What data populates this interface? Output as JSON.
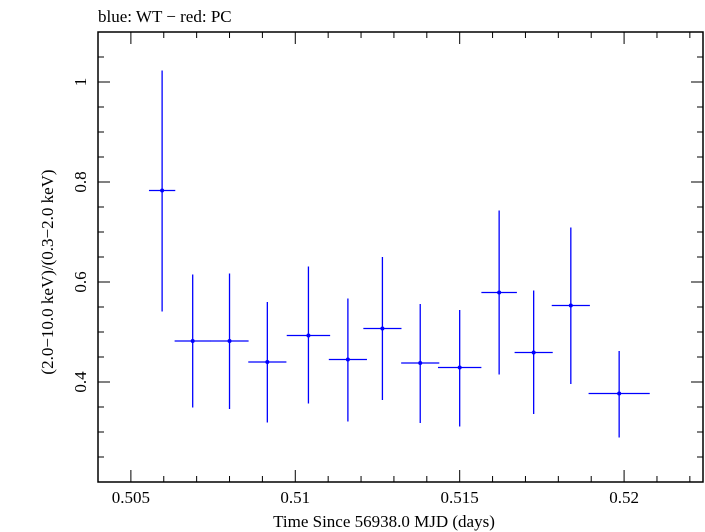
{
  "chart_data": {
    "type": "scatter",
    "title": "blue: WT − red: PC",
    "xlabel": "Time Since 56938.0 MJD (days)",
    "ylabel": "(2.0−10.0 keV)/(0.3−2.0 keV)",
    "xlim": [
      0.504,
      0.5224
    ],
    "ylim": [
      0.2,
      1.1
    ],
    "x_major_ticks": [
      0.505,
      0.51,
      0.515,
      0.52
    ],
    "x_tick_labels": [
      "0.505",
      "0.51",
      "0.515",
      "0.52"
    ],
    "x_minor_step": 0.001,
    "y_major_ticks": [
      0.4,
      0.6,
      0.8,
      1.0
    ],
    "y_tick_labels": [
      "0.4",
      "0.6",
      "0.8",
      "1"
    ],
    "y_minor_step": 0.05,
    "grid": false,
    "series": [
      {
        "name": "WT",
        "color": "#0000ff",
        "points": [
          {
            "x": 0.50595,
            "xerr": 0.0004,
            "y": 0.783,
            "ylo": 0.541,
            "yhi": 1.023
          },
          {
            "x": 0.50688,
            "xerr": 0.00055,
            "y": 0.482,
            "ylo": 0.349,
            "yhi": 0.615
          },
          {
            "x": 0.508,
            "xerr": 0.00058,
            "y": 0.482,
            "ylo": 0.346,
            "yhi": 0.617
          },
          {
            "x": 0.50915,
            "xerr": 0.00058,
            "y": 0.44,
            "ylo": 0.319,
            "yhi": 0.56
          },
          {
            "x": 0.5104,
            "xerr": 0.00066,
            "y": 0.493,
            "ylo": 0.357,
            "yhi": 0.631
          },
          {
            "x": 0.5116,
            "xerr": 0.00058,
            "y": 0.445,
            "ylo": 0.321,
            "yhi": 0.567
          },
          {
            "x": 0.51265,
            "xerr": 0.00058,
            "y": 0.507,
            "ylo": 0.364,
            "yhi": 0.65
          },
          {
            "x": 0.5138,
            "xerr": 0.00058,
            "y": 0.438,
            "ylo": 0.318,
            "yhi": 0.556
          },
          {
            "x": 0.515,
            "xerr": 0.00066,
            "y": 0.429,
            "ylo": 0.311,
            "yhi": 0.544
          },
          {
            "x": 0.5162,
            "xerr": 0.00054,
            "y": 0.579,
            "ylo": 0.415,
            "yhi": 0.743
          },
          {
            "x": 0.51725,
            "xerr": 0.00058,
            "y": 0.459,
            "ylo": 0.336,
            "yhi": 0.583
          },
          {
            "x": 0.51838,
            "xerr": 0.00058,
            "y": 0.553,
            "ylo": 0.396,
            "yhi": 0.709
          },
          {
            "x": 0.51985,
            "xerr": 0.00093,
            "y": 0.377,
            "ylo": 0.289,
            "yhi": 0.462
          }
        ]
      }
    ]
  }
}
